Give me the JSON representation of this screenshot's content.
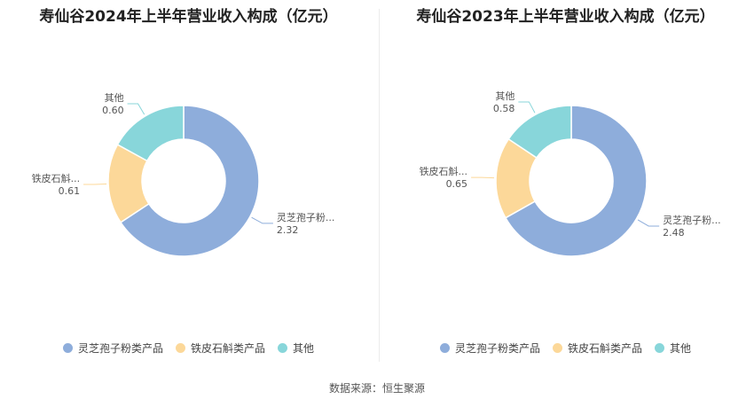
{
  "colors": {
    "series": [
      "#8eaddb",
      "#fcd899",
      "#88d6da"
    ],
    "leader_line": "#aaaaaa",
    "label_text": "#555555"
  },
  "chart_data": [
    {
      "type": "pie",
      "variant": "donut",
      "title": "寿仙谷2024年上半年营业收入构成（亿元）",
      "categories": [
        "灵芝孢子粉类产品",
        "铁皮石斛类产品",
        "其他"
      ],
      "slice_labels": [
        "灵芝孢子粉...",
        "铁皮石斛...",
        "其他"
      ],
      "values": [
        2.32,
        0.61,
        0.6
      ],
      "value_labels": [
        "2.32",
        "0.61",
        "0.60"
      ],
      "legend_position": "bottom"
    },
    {
      "type": "pie",
      "variant": "donut",
      "title": "寿仙谷2023年上半年营业收入构成（亿元）",
      "categories": [
        "灵芝孢子粉类产品",
        "铁皮石斛类产品",
        "其他"
      ],
      "slice_labels": [
        "灵芝孢子粉...",
        "铁皮石斛...",
        "其他"
      ],
      "values": [
        2.48,
        0.65,
        0.58
      ],
      "value_labels": [
        "2.48",
        "0.65",
        "0.58"
      ],
      "legend_position": "bottom"
    }
  ],
  "footer": {
    "source": "数据来源：恒生聚源"
  }
}
